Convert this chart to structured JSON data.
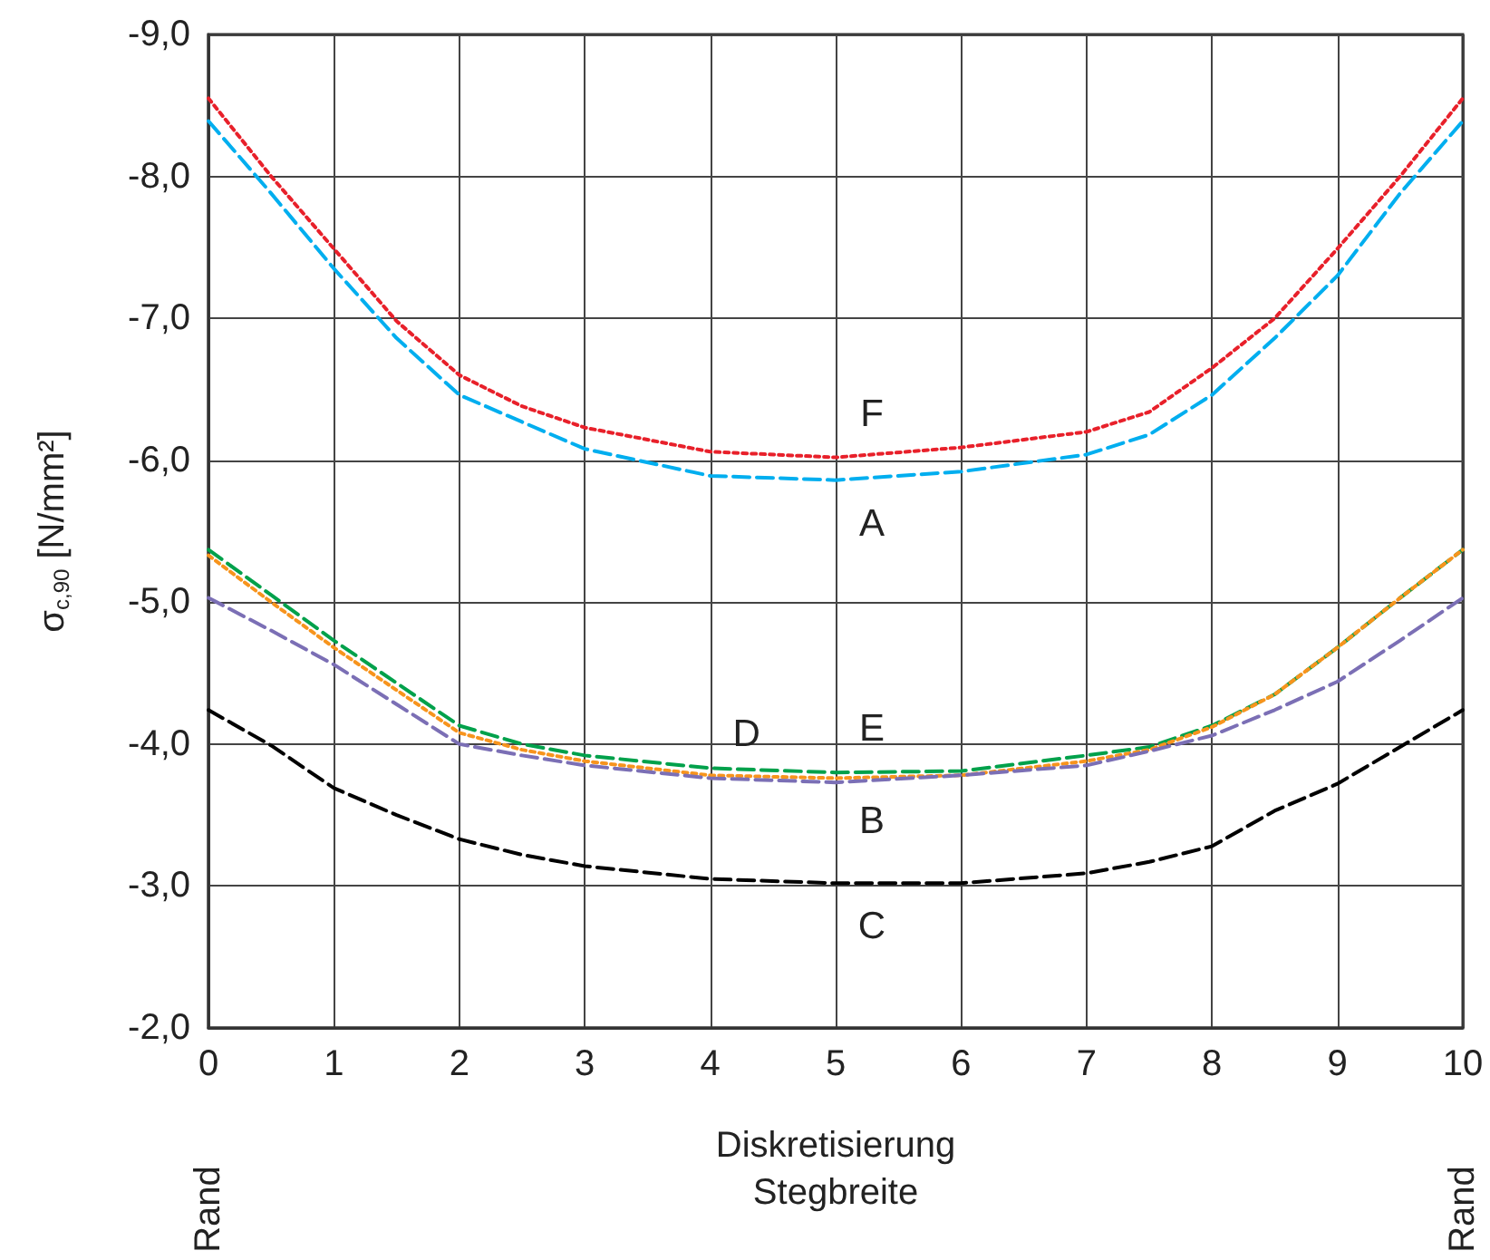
{
  "chart_data": {
    "type": "line",
    "xlabel": "Diskretisierung\nStegbreite",
    "ylabel": "σ$_{c,90}$ [N/mm²]",
    "x": [
      0,
      0.5,
      1,
      1.5,
      2,
      2.5,
      3,
      4,
      5,
      6,
      7,
      7.5,
      8,
      8.5,
      9,
      9.5,
      10
    ],
    "series": [
      {
        "name": "F",
        "color": "#e8202a",
        "line_style": "dotted",
        "values": [
          -8.55,
          -8.0,
          -7.49,
          -6.98,
          -6.6,
          -6.38,
          -6.23,
          -6.06,
          -6.02,
          -6.09,
          -6.2,
          -6.34,
          -6.65,
          -7.0,
          -7.49,
          -8.0,
          -8.55
        ]
      },
      {
        "name": "A",
        "color": "#00aeef",
        "line_style": "dashed",
        "values": [
          -8.39,
          -7.88,
          -7.35,
          -6.86,
          -6.46,
          -6.27,
          -6.08,
          -5.89,
          -5.86,
          -5.92,
          -6.04,
          -6.18,
          -6.46,
          -6.86,
          -7.3,
          -7.88,
          -8.39
        ]
      },
      {
        "name": "E",
        "color": "#00a14b",
        "line_style": "dashed",
        "values": [
          -5.37,
          -5.05,
          -4.73,
          -4.43,
          -4.13,
          -4.0,
          -3.92,
          -3.83,
          -3.8,
          -3.81,
          -3.92,
          -3.98,
          -4.13,
          -4.35,
          -4.68,
          -5.03,
          -5.37
        ]
      },
      {
        "name": "B",
        "color": "#f7941d",
        "line_style": "dotted",
        "values": [
          -5.33,
          -5.0,
          -4.68,
          -4.38,
          -4.08,
          -3.96,
          -3.88,
          -3.78,
          -3.76,
          -3.78,
          -3.88,
          -3.96,
          -4.12,
          -4.35,
          -4.68,
          -5.03,
          -5.37
        ]
      },
      {
        "name": "D",
        "color": "#7b6fb5",
        "line_style": "dashed",
        "values": [
          -5.03,
          -4.8,
          -4.56,
          -4.28,
          -4.0,
          -3.92,
          -3.85,
          -3.76,
          -3.73,
          -3.78,
          -3.85,
          -3.95,
          -4.06,
          -4.24,
          -4.44,
          -4.73,
          -5.03
        ]
      },
      {
        "name": "C",
        "color": "#000000",
        "line_style": "dashed",
        "values": [
          -4.24,
          -3.99,
          -3.69,
          -3.5,
          -3.33,
          -3.22,
          -3.14,
          -3.05,
          -3.02,
          -3.02,
          -3.09,
          -3.17,
          -3.28,
          -3.53,
          -3.72,
          -3.98,
          -4.24
        ]
      }
    ],
    "annotations": [
      "Rand",
      "Rand"
    ],
    "xlim": [
      0,
      10
    ],
    "xticks": [
      0,
      1,
      2,
      3,
      4,
      5,
      6,
      7,
      8,
      9,
      10
    ],
    "ylim": [
      -2,
      -9
    ],
    "yticks": [
      {
        "value": -9,
        "label": "-9,0"
      },
      {
        "value": -8,
        "label": "-8,0"
      },
      {
        "value": -7,
        "label": "-7,0"
      },
      {
        "value": -6,
        "label": "-6,0"
      },
      {
        "value": -5,
        "label": "-5,0"
      },
      {
        "value": -4,
        "label": "-4,0"
      },
      {
        "value": -3,
        "label": "-3,0"
      },
      {
        "value": -2,
        "label": "-2,0"
      }
    ],
    "grid": true,
    "marker": "none"
  }
}
